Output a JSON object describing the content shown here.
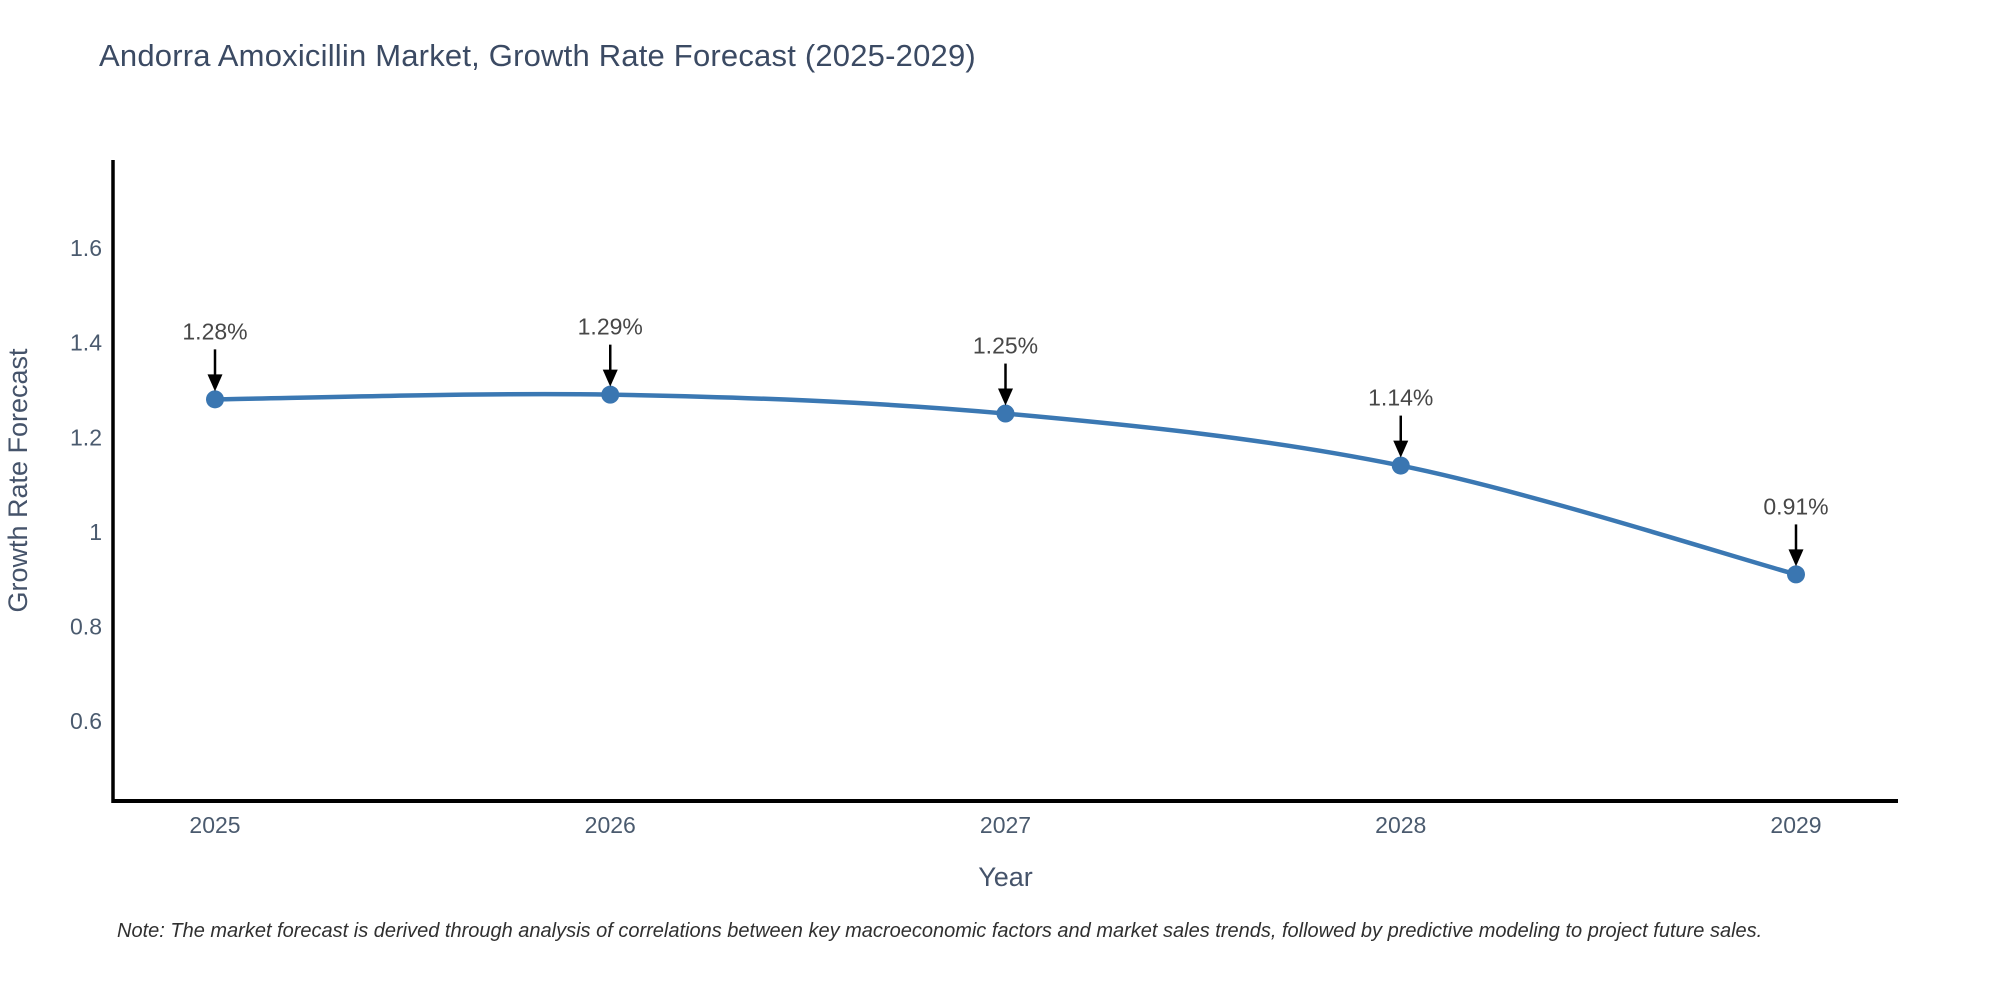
{
  "page": {
    "background_color": "#ffffff"
  },
  "header": {
    "title": "Andorra Amoxicillin Market, Growth Rate Forecast (2025-2029)",
    "title_color": "#3b4a63"
  },
  "footer": {
    "note": "Note: The market forecast is derived through analysis of correlations between key macroeconomic factors and market sales trends, followed by predictive modeling to project future sales."
  },
  "chart_data": {
    "type": "line",
    "title": "Andorra Amoxicillin Market, Growth Rate Forecast (2025-2029)",
    "categories": [
      "2025",
      "2026",
      "2027",
      "2028",
      "2029"
    ],
    "x": [
      2025,
      2026,
      2027,
      2028,
      2029
    ],
    "values": [
      1.28,
      1.29,
      1.25,
      1.14,
      0.91
    ],
    "data_labels": [
      "1.28%",
      "1.29%",
      "1.25%",
      "1.14%",
      "0.91%"
    ],
    "xlabel": "Year",
    "ylabel": "Growth Rate Forecast",
    "ylim": [
      0.431,
      1.786
    ],
    "yticks": [
      0.6,
      0.8,
      1,
      1.2,
      1.4,
      1.6
    ],
    "ytick_labels": [
      "0.6",
      "0.8",
      "1",
      "1.2",
      "1.4",
      "1.6"
    ],
    "grid": false,
    "legend_position": "none",
    "line_shape": "spline",
    "line_color": "#3b78b3",
    "marker_color": "#3a76b1",
    "axis_line_color": "#000000",
    "tick_label_color": "#4a5a6e",
    "axis_title_color": "#45536a",
    "annotation_text_color": "#474747",
    "annotation_arrow_color": "#000000"
  }
}
